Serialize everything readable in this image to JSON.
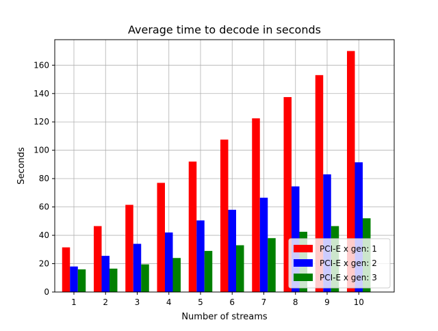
{
  "chart_data": {
    "type": "bar",
    "title": "Average time to decode in seconds",
    "xlabel": "Number of streams",
    "ylabel": "Seconds",
    "categories": [
      "1",
      "2",
      "3",
      "4",
      "5",
      "6",
      "7",
      "8",
      "9",
      "10"
    ],
    "series": [
      {
        "name": "PCI-E x gen: 1",
        "color": "#ff0000",
        "values": [
          31.5,
          46.5,
          61.5,
          77,
          92,
          107.5,
          122.5,
          137.5,
          153,
          170
        ]
      },
      {
        "name": "PCI-E x gen: 2",
        "color": "#0000ff",
        "values": [
          18,
          25.5,
          34,
          42,
          50.5,
          58,
          66.5,
          74.5,
          83,
          91.5
        ]
      },
      {
        "name": "PCI-E x gen: 3",
        "color": "#008000",
        "values": [
          16,
          16.5,
          19.5,
          24,
          29,
          33,
          38,
          42.5,
          46.5,
          52
        ]
      }
    ],
    "ylim": [
      0,
      178
    ],
    "yticks": [
      0,
      20,
      40,
      60,
      80,
      100,
      120,
      140,
      160
    ],
    "grid": true,
    "legend_position": "bottom-right"
  }
}
